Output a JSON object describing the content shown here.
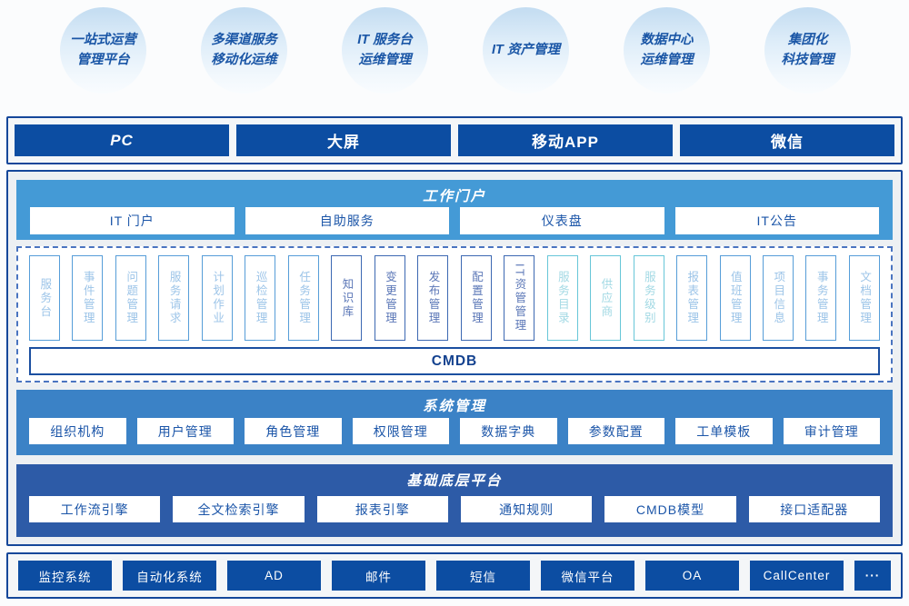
{
  "bubbles": [
    {
      "lines": [
        "一站式运营",
        "管理平台"
      ]
    },
    {
      "lines": [
        "多渠道服务",
        "移动化运维"
      ]
    },
    {
      "lines": [
        "IT 服务台",
        "运维管理"
      ]
    },
    {
      "lines": [
        "IT 资产管理"
      ]
    },
    {
      "lines": [
        "数据中心",
        "运维管理"
      ]
    },
    {
      "lines": [
        "集团化",
        "科技管理"
      ]
    }
  ],
  "channels": {
    "items": [
      {
        "label": "PC"
      },
      {
        "label": "大屏"
      },
      {
        "label": "移动APP"
      },
      {
        "label": "微信"
      }
    ]
  },
  "portal": {
    "title": "工作门户",
    "items": [
      {
        "label": "IT 门户"
      },
      {
        "label": "自助服务"
      },
      {
        "label": "仪表盘"
      },
      {
        "label": "IT公告"
      }
    ]
  },
  "modules": {
    "cmdb": "CMDB",
    "items": [
      {
        "label": "服务台",
        "group": "itsm"
      },
      {
        "label": "事件管理",
        "group": "itsm"
      },
      {
        "label": "问题管理",
        "group": "itsm"
      },
      {
        "label": "服务请求",
        "group": "itsm"
      },
      {
        "label": "计划作业",
        "group": "itsm"
      },
      {
        "label": "巡检管理",
        "group": "itsm"
      },
      {
        "label": "任务管理",
        "group": "itsm"
      },
      {
        "label": "知识库",
        "group": "core"
      },
      {
        "label": "变更管理",
        "group": "core"
      },
      {
        "label": "发布管理",
        "group": "core"
      },
      {
        "label": "配置管理",
        "group": "core"
      },
      {
        "label": "IT资管管理",
        "group": "core"
      },
      {
        "label": "服务目录",
        "group": "catalog"
      },
      {
        "label": "供应商",
        "group": "catalog"
      },
      {
        "label": "服务级别",
        "group": "catalog"
      },
      {
        "label": "报表管理",
        "group": "itsm"
      },
      {
        "label": "值班管理",
        "group": "itsm"
      },
      {
        "label": "项目信息",
        "group": "itsm"
      },
      {
        "label": "事务管理",
        "group": "itsm"
      },
      {
        "label": "文档管理",
        "group": "itsm"
      }
    ]
  },
  "system": {
    "title": "系统管理",
    "items": [
      {
        "label": "组织机构"
      },
      {
        "label": "用户管理"
      },
      {
        "label": "角色管理"
      },
      {
        "label": "权限管理"
      },
      {
        "label": "数据字典"
      },
      {
        "label": "参数配置"
      },
      {
        "label": "工单模板"
      },
      {
        "label": "审计管理"
      }
    ]
  },
  "base": {
    "title": "基础底层平台",
    "items": [
      {
        "label": "工作流引擎"
      },
      {
        "label": "全文检索引擎"
      },
      {
        "label": "报表引擎"
      },
      {
        "label": "通知规则"
      },
      {
        "label": "CMDB模型"
      },
      {
        "label": "接口适配器"
      }
    ]
  },
  "integrations": {
    "items": [
      {
        "label": "监控系统"
      },
      {
        "label": "自动化系统"
      },
      {
        "label": "AD"
      },
      {
        "label": "邮件"
      },
      {
        "label": "短信"
      },
      {
        "label": "微信平台"
      },
      {
        "label": "OA"
      },
      {
        "label": "CallCenter"
      },
      {
        "label": "···"
      }
    ]
  },
  "colors": {
    "dark_blue": "#0c4da2",
    "container_border": "#15479a",
    "portal_bg": "#449ad6",
    "system_bg": "#3b82c6",
    "base_bg": "#2d5ba7",
    "button_text": "#1b55a8",
    "module_itsm": "#569dd8",
    "module_core": "#3c68b2",
    "module_catalog": "#67c6d8",
    "bubble_text": "#1a56a6"
  }
}
